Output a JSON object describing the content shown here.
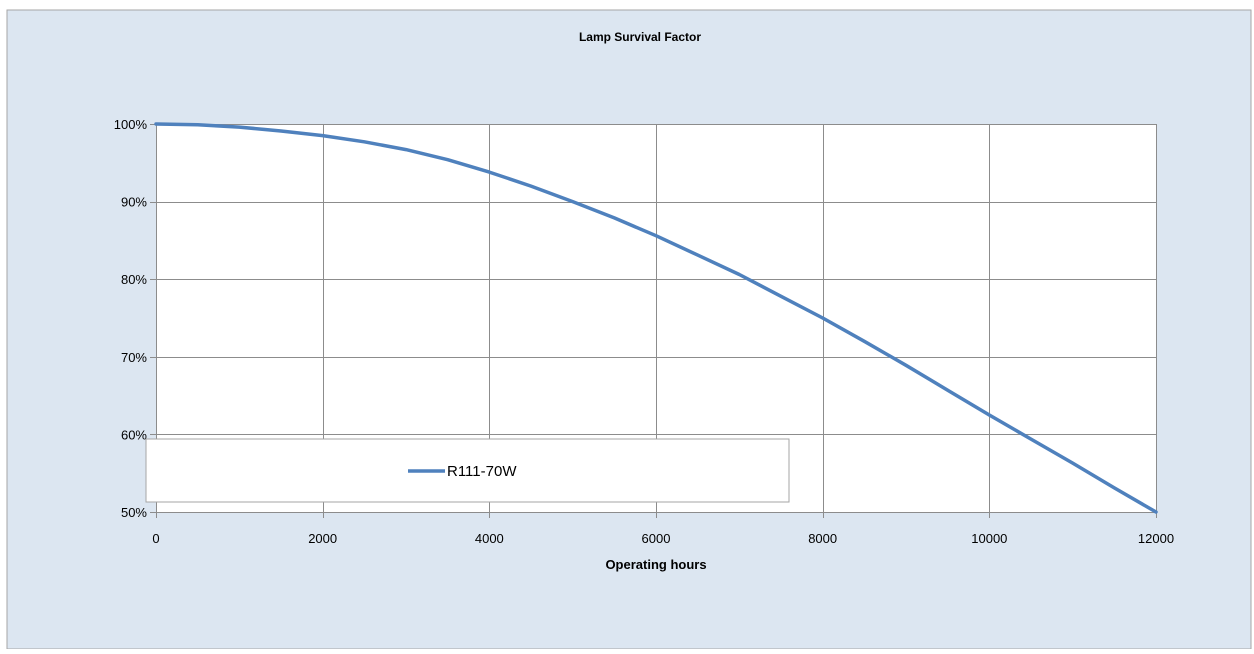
{
  "colors": {
    "chart_area_background": "#dce6f1",
    "plot_area_background": "#ffffff",
    "gridline": "#8c8c8c",
    "series_line": "#4f81bd",
    "legend_border": "#a6a6a6"
  },
  "chart_data": {
    "type": "line",
    "title": "Lamp Survival Factor",
    "xlabel": "Operating hours",
    "ylabel": "",
    "xlim": [
      0,
      12000
    ],
    "ylim": [
      0.5,
      1.0
    ],
    "x_ticks": [
      0,
      2000,
      4000,
      6000,
      8000,
      10000,
      12000
    ],
    "y_ticks": [
      0.5,
      0.6,
      0.7,
      0.8,
      0.9,
      1.0
    ],
    "y_tick_format": "percent",
    "grid": true,
    "legend_position": "bottom-left",
    "series": [
      {
        "name": "R111-70W",
        "x": [
          0,
          500,
          1000,
          1500,
          2000,
          2500,
          3000,
          3500,
          4000,
          4500,
          5000,
          5500,
          6000,
          6500,
          7000,
          7500,
          8000,
          8500,
          9000,
          9500,
          10000,
          10500,
          11000,
          11500,
          12000
        ],
        "y": [
          1.0,
          0.999,
          0.996,
          0.991,
          0.985,
          0.977,
          0.967,
          0.954,
          0.938,
          0.92,
          0.9,
          0.879,
          0.856,
          0.831,
          0.806,
          0.778,
          0.75,
          0.72,
          0.689,
          0.657,
          0.625,
          0.594,
          0.563,
          0.531,
          0.5
        ]
      }
    ]
  }
}
